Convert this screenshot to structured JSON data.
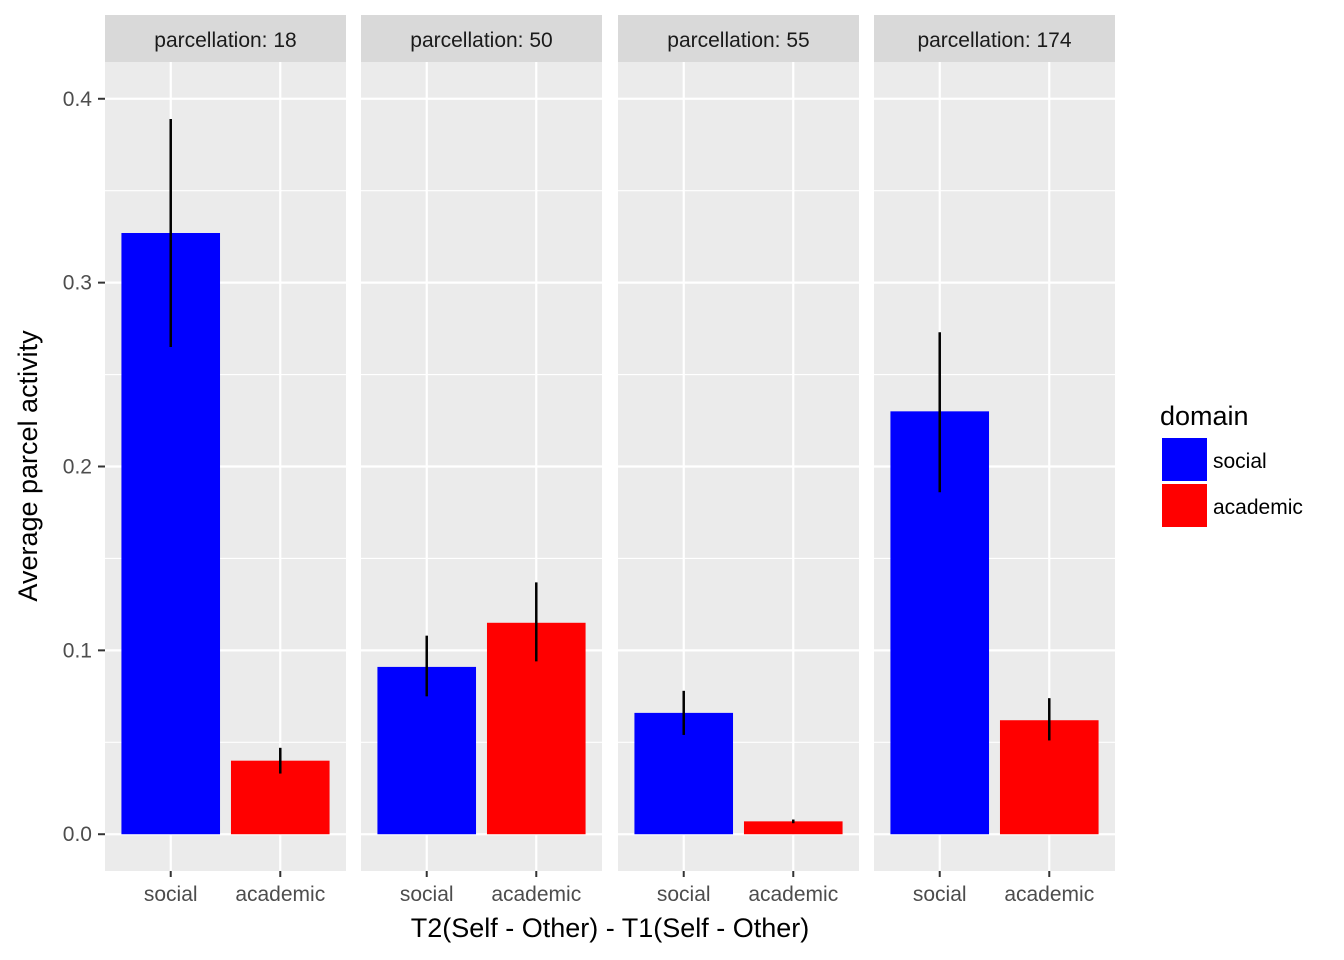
{
  "chart_data": {
    "type": "bar",
    "xlabel": "T2(Self - Other) - T1(Self - Other)",
    "ylabel": "Average parcel activity",
    "ylim": [
      -0.02,
      0.42
    ],
    "yticks": [
      "0.0",
      "0.1",
      "0.2",
      "0.3",
      "0.4"
    ],
    "categories": [
      "social",
      "academic"
    ],
    "grid": true,
    "legend": {
      "title": "domain",
      "placement": "right",
      "entries": [
        {
          "label": "social",
          "color": "#0000ff"
        },
        {
          "label": "academic",
          "color": "#ff0000"
        }
      ]
    },
    "facets": [
      {
        "label": "parcellation: 18",
        "values": [
          0.327,
          0.04
        ],
        "error_low": [
          0.265,
          0.033
        ],
        "error_high": [
          0.389,
          0.047
        ]
      },
      {
        "label": "parcellation: 50",
        "values": [
          0.091,
          0.115
        ],
        "error_low": [
          0.075,
          0.094
        ],
        "error_high": [
          0.108,
          0.137
        ]
      },
      {
        "label": "parcellation: 55",
        "values": [
          0.066,
          0.007
        ],
        "error_low": [
          0.054,
          0.006
        ],
        "error_high": [
          0.078,
          0.008
        ]
      },
      {
        "label": "parcellation: 174",
        "values": [
          0.23,
          0.062
        ],
        "error_low": [
          0.186,
          0.051
        ],
        "error_high": [
          0.273,
          0.074
        ]
      }
    ],
    "colors": {
      "social": "#0000ff",
      "academic": "#ff0000",
      "panel": "#ebebeb",
      "strip": "#d9d9d9",
      "grid": "#ffffff",
      "error_bar": "#000000"
    }
  }
}
